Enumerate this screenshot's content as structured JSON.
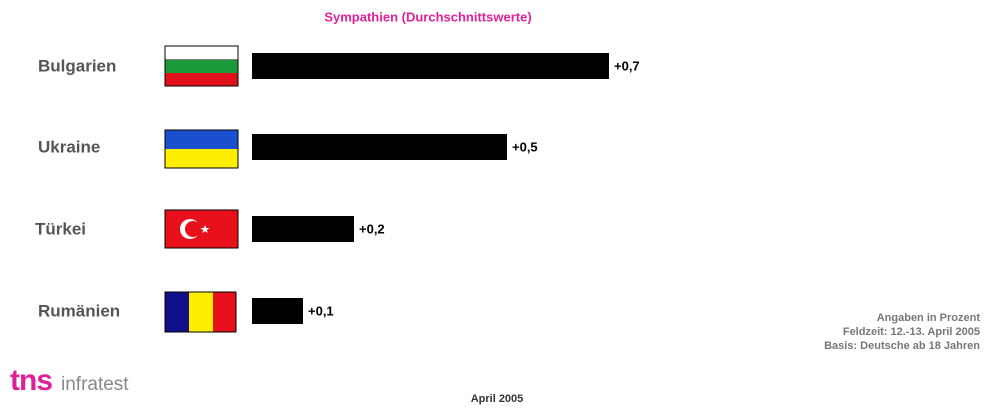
{
  "chart_data": {
    "type": "bar",
    "orientation": "horizontal",
    "title": "Sympathien (Durchschnittswerte)",
    "categories": [
      "Bulgarien",
      "Ukraine",
      "Türkei",
      "Rumänien"
    ],
    "values": [
      0.7,
      0.5,
      0.2,
      0.1
    ],
    "value_labels": [
      "+0,7",
      "+0,5",
      "+0,2",
      "+0,1"
    ],
    "color": "#000000",
    "notes": [
      "Angaben in Prozent",
      "Feldzeit: 12.-13. April 2005",
      "Basis: Deutsche ab 18 Jahren"
    ],
    "date": "April 2005",
    "logo": [
      "tns",
      "infratest"
    ]
  }
}
